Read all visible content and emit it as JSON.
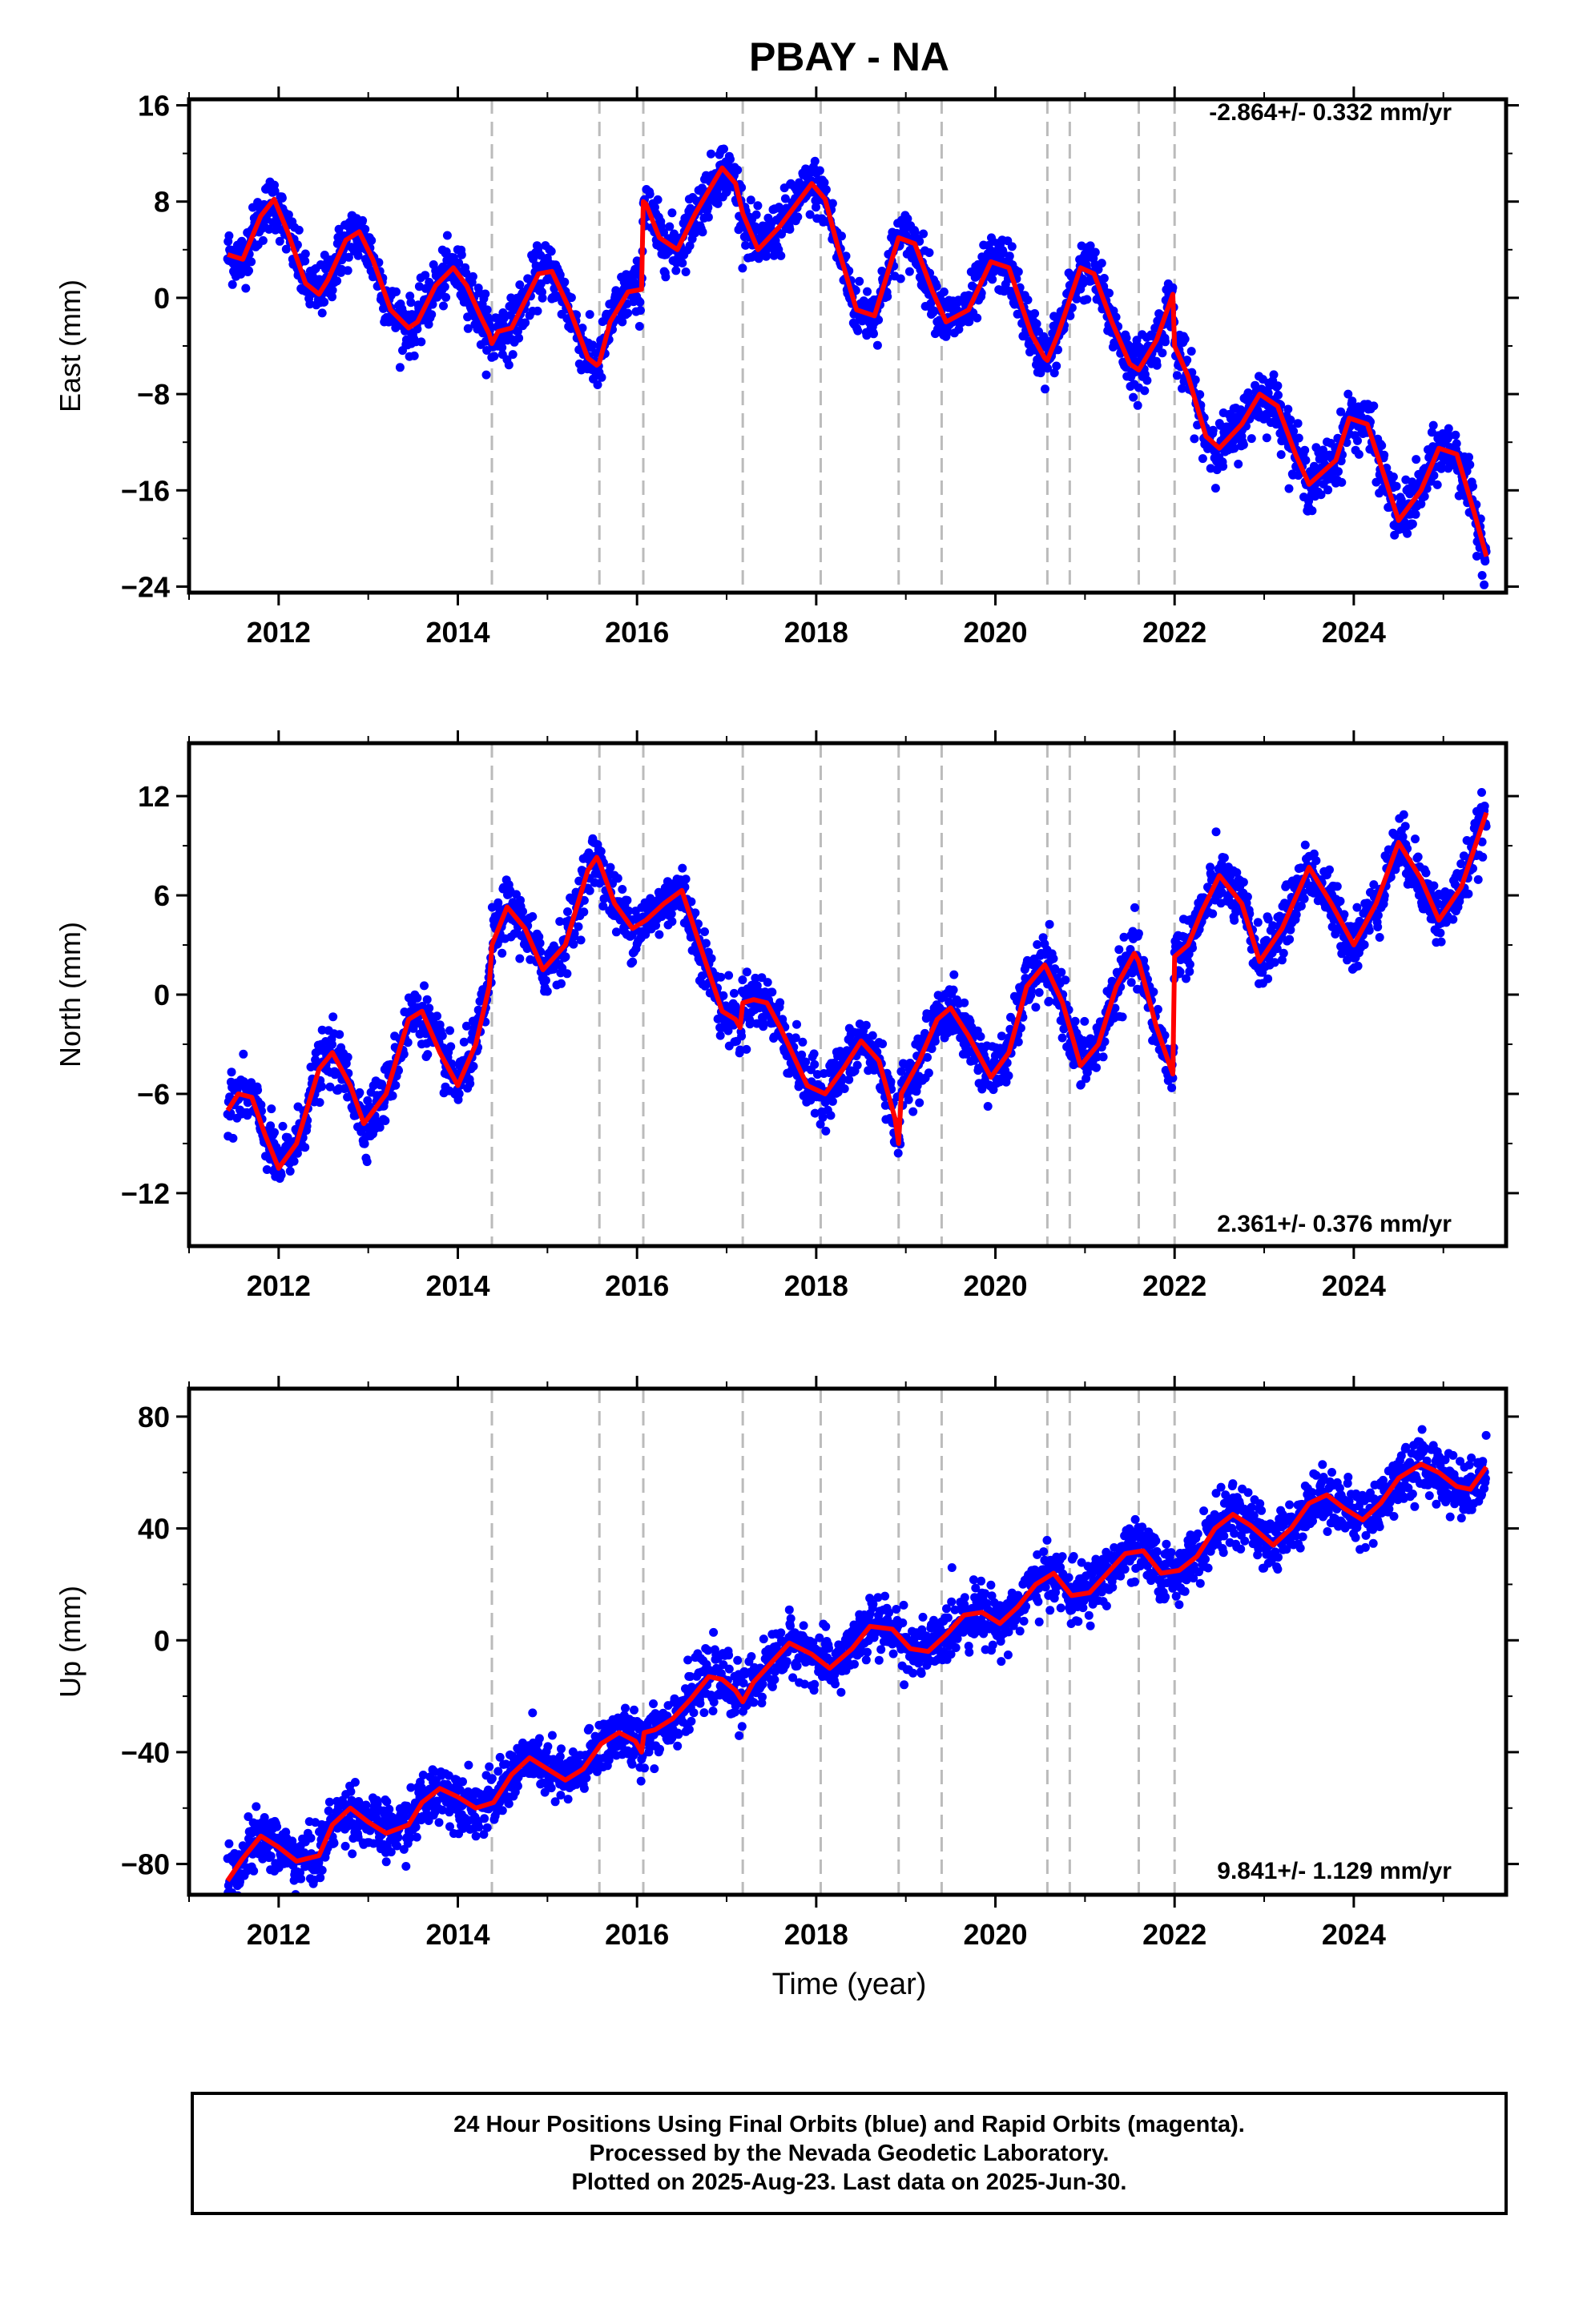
{
  "title": "PBAY - NA",
  "xlabel": "Time (year)",
  "colors": {
    "points": "#0000ff",
    "fit": "#ff0000",
    "breaks": "#bbbbbb"
  },
  "chart_data": [
    {
      "type": "scatter",
      "component": "east",
      "ylabel": "East (mm)",
      "rate_label": "-2.864+/- 0.332 mm/yr",
      "xlim": [
        2011.0,
        2025.7
      ],
      "ylim": [
        -24.5,
        16.5
      ],
      "yticks": [
        16,
        8,
        0,
        -8,
        -16,
        -24
      ],
      "ytick_labels": [
        "16",
        "8",
        "0",
        "−8",
        "−16",
        "−24"
      ],
      "xticks": [
        2012,
        2014,
        2016,
        2018,
        2020,
        2022,
        2024
      ],
      "xtick_labels": [
        "2012",
        "2014",
        "2016",
        "2018",
        "2020",
        "2022",
        "2024"
      ],
      "series": [
        {
          "type": "line",
          "x": [
            2011.43,
            2011.6,
            2011.8,
            2011.95,
            2012.1,
            2012.3,
            2012.45,
            2012.55,
            2012.75,
            2012.9,
            2013.05,
            2013.25,
            2013.45,
            2013.55,
            2013.75,
            2013.95,
            2014.1,
            2014.25,
            2014.35,
            2014.38,
            2014.45,
            2014.6,
            2014.9,
            2015.05,
            2015.25,
            2015.45,
            2015.55,
            2015.58,
            2015.7,
            2015.9,
            2016.05,
            2016.07,
            2016.1,
            2016.25,
            2016.45,
            2016.65,
            2016.95,
            2017.1,
            2017.18,
            2017.35,
            2017.6,
            2017.95,
            2018.1,
            2018.25,
            2018.45,
            2018.65,
            2018.92,
            2019.1,
            2019.3,
            2019.45,
            2019.7,
            2019.95,
            2020.15,
            2020.4,
            2020.55,
            2020.58,
            2020.7,
            2020.95,
            2021.1,
            2021.3,
            2021.5,
            2021.6,
            2021.8,
            2021.98,
            2022.0,
            2022.15,
            2022.35,
            2022.5,
            2022.75,
            2022.95,
            2023.15,
            2023.35,
            2023.5,
            2023.8,
            2023.95,
            2024.15,
            2024.35,
            2024.5,
            2024.75,
            2024.95,
            2025.15,
            2025.35,
            2025.48
          ],
          "y": [
            3.6,
            3.2,
            6.8,
            8.2,
            5.5,
            1.2,
            0.3,
            1.5,
            4.8,
            5.5,
            3.2,
            -1.0,
            -2.5,
            -2.0,
            1.0,
            2.5,
            1.0,
            -1.5,
            -3.0,
            -3.8,
            -2.8,
            -2.5,
            2.0,
            2.2,
            -1.0,
            -5.0,
            -5.6,
            -5.4,
            -2.0,
            0.5,
            0.7,
            8.0,
            7.8,
            5.0,
            4.0,
            7.0,
            10.8,
            9.5,
            7.0,
            4.0,
            6.0,
            9.5,
            8.2,
            4.0,
            -1.0,
            -1.5,
            5.0,
            4.5,
            0.5,
            -2.0,
            -1.0,
            3.0,
            2.5,
            -3.0,
            -5.0,
            -5.2,
            -3.0,
            2.5,
            2.0,
            -2.0,
            -5.5,
            -6.0,
            -3.5,
            0.3,
            -4.0,
            -6.5,
            -11.5,
            -12.5,
            -10.5,
            -8.0,
            -9.0,
            -13.0,
            -15.5,
            -13.5,
            -10.0,
            -10.5,
            -15.0,
            -18.5,
            -16.0,
            -12.5,
            -13.0,
            -18.0,
            -21.5
          ]
        }
      ]
    },
    {
      "type": "scatter",
      "component": "north",
      "ylabel": "North (mm)",
      "rate_label": "2.361+/- 0.376 mm/yr",
      "xlim": [
        2011.0,
        2025.7
      ],
      "ylim": [
        -15.2,
        15.2
      ],
      "yticks": [
        12,
        6,
        0,
        -6,
        -12
      ],
      "ytick_labels": [
        "12",
        "6",
        "0",
        "−6",
        "−12"
      ],
      "xticks": [
        2012,
        2014,
        2016,
        2018,
        2020,
        2022,
        2024
      ],
      "xtick_labels": [
        "2012",
        "2014",
        "2016",
        "2018",
        "2020",
        "2022",
        "2024"
      ],
      "series": [
        {
          "type": "line",
          "x": [
            2011.43,
            2011.55,
            2011.7,
            2011.85,
            2012.0,
            2012.2,
            2012.45,
            2012.6,
            2012.8,
            2012.95,
            2013.2,
            2013.45,
            2013.6,
            2013.8,
            2014.0,
            2014.2,
            2014.35,
            2014.38,
            2014.55,
            2014.75,
            2014.95,
            2015.2,
            2015.45,
            2015.55,
            2015.58,
            2015.75,
            2015.95,
            2016.1,
            2016.3,
            2016.5,
            2016.7,
            2016.95,
            2017.1,
            2017.15,
            2017.18,
            2017.3,
            2017.45,
            2017.6,
            2017.9,
            2018.1,
            2018.3,
            2018.5,
            2018.7,
            2018.88,
            2018.92,
            2018.95,
            2019.15,
            2019.35,
            2019.5,
            2019.7,
            2019.95,
            2020.15,
            2020.35,
            2020.55,
            2020.58,
            2020.75,
            2020.95,
            2021.15,
            2021.35,
            2021.55,
            2021.6,
            2021.8,
            2021.98,
            2022.0,
            2022.15,
            2022.3,
            2022.5,
            2022.75,
            2022.95,
            2023.2,
            2023.5,
            2023.75,
            2024.0,
            2024.25,
            2024.5,
            2024.75,
            2024.95,
            2025.2,
            2025.48
          ],
          "y": [
            -7.0,
            -6.0,
            -6.2,
            -8.5,
            -10.5,
            -9.0,
            -4.5,
            -3.5,
            -5.5,
            -7.8,
            -6.0,
            -1.5,
            -1.0,
            -3.5,
            -5.5,
            -3.0,
            0.5,
            3.0,
            5.3,
            4.0,
            1.5,
            3.0,
            7.5,
            8.3,
            8.0,
            5.5,
            4.0,
            4.5,
            5.5,
            6.3,
            3.0,
            -1.0,
            -1.5,
            -2.0,
            -0.5,
            -0.3,
            -0.5,
            -2.0,
            -5.5,
            -6.0,
            -4.5,
            -2.8,
            -4.0,
            -7.5,
            -9.0,
            -6.0,
            -4.0,
            -1.5,
            -0.8,
            -2.5,
            -5.0,
            -3.5,
            0.5,
            1.8,
            1.5,
            -0.5,
            -4.3,
            -3.0,
            0.5,
            2.5,
            2.0,
            -2.0,
            -4.8,
            2.3,
            3.0,
            5.0,
            7.2,
            5.5,
            2.0,
            4.0,
            7.7,
            5.5,
            3.0,
            5.5,
            9.2,
            7.0,
            4.5,
            6.5,
            11.0
          ]
        }
      ]
    },
    {
      "type": "scatter",
      "component": "up",
      "ylabel": "Up (mm)",
      "rate_label": "9.841+/- 1.129 mm/yr",
      "xlim": [
        2011.0,
        2025.7
      ],
      "ylim": [
        -91,
        90
      ],
      "yticks": [
        80,
        40,
        0,
        -40,
        -80
      ],
      "ytick_labels": [
        "80",
        "40",
        "0",
        "−40",
        "−80"
      ],
      "xticks": [
        2012,
        2014,
        2016,
        2018,
        2020,
        2022,
        2024
      ],
      "xtick_labels": [
        "2012",
        "2014",
        "2016",
        "2018",
        "2020",
        "2022",
        "2024"
      ],
      "series": [
        {
          "type": "line",
          "x": [
            2011.43,
            2011.6,
            2011.8,
            2012.0,
            2012.2,
            2012.45,
            2012.6,
            2012.8,
            2013.0,
            2013.2,
            2013.45,
            2013.6,
            2013.8,
            2014.0,
            2014.2,
            2014.4,
            2014.6,
            2014.8,
            2015.0,
            2015.2,
            2015.4,
            2015.6,
            2015.8,
            2015.98,
            2016.05,
            2016.08,
            2016.2,
            2016.4,
            2016.6,
            2016.8,
            2016.95,
            2017.1,
            2017.18,
            2017.3,
            2017.5,
            2017.7,
            2017.95,
            2018.15,
            2018.4,
            2018.6,
            2018.85,
            2019.05,
            2019.25,
            2019.45,
            2019.65,
            2019.85,
            2020.05,
            2020.25,
            2020.45,
            2020.65,
            2020.85,
            2021.05,
            2021.25,
            2021.45,
            2021.65,
            2021.85,
            2022.05,
            2022.25,
            2022.45,
            2022.65,
            2022.85,
            2023.1,
            2023.3,
            2023.5,
            2023.7,
            2023.9,
            2024.1,
            2024.3,
            2024.5,
            2024.75,
            2024.95,
            2025.15,
            2025.3,
            2025.48
          ],
          "y": [
            -86,
            -78,
            -70,
            -74,
            -79,
            -77,
            -66,
            -60,
            -65,
            -69,
            -66,
            -58,
            -53,
            -56,
            -60,
            -58,
            -48,
            -42,
            -46,
            -50,
            -46,
            -37,
            -33,
            -36,
            -40,
            -33,
            -32,
            -28,
            -21,
            -13,
            -14,
            -18,
            -22,
            -15,
            -8,
            -1,
            -5,
            -10,
            -3,
            5,
            4,
            -3,
            -4,
            2,
            9,
            10,
            6,
            12,
            20,
            24,
            16,
            17,
            24,
            31,
            32,
            24,
            25,
            30,
            40,
            45,
            41,
            34,
            40,
            49,
            52,
            47,
            43,
            49,
            58,
            63,
            60,
            55,
            54,
            62
          ]
        }
      ]
    }
  ],
  "breaks": [
    2014.38,
    2015.58,
    2016.07,
    2017.18,
    2018.05,
    2018.92,
    2019.4,
    2020.58,
    2020.83,
    2021.6,
    2022.0
  ],
  "footer": {
    "line1": "24 Hour Positions Using Final Orbits (blue) and Rapid Orbits (magenta).",
    "line2": "Processed by the Nevada Geodetic Laboratory.",
    "line3": "Plotted on 2025-Aug-23. Last data on 2025-Jun-30."
  }
}
